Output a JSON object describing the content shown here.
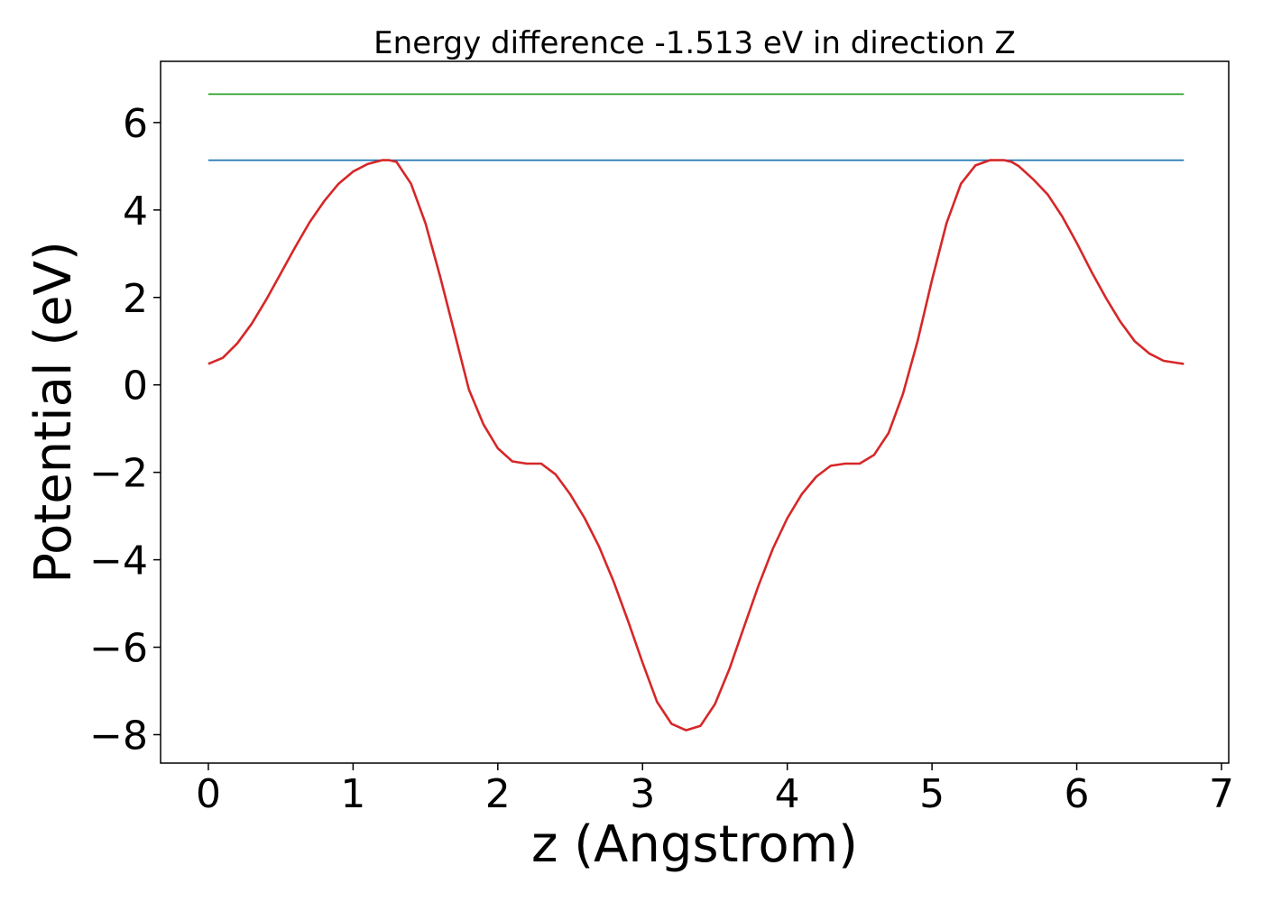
{
  "chart_data": {
    "type": "line",
    "title": "Energy difference -1.513 eV in direction Z",
    "xlabel": "z (Angstrom)",
    "ylabel": "Potential (eV)",
    "xlim": [
      -0.33,
      7.05
    ],
    "ylim": [
      -8.65,
      7.4
    ],
    "xticks": [
      0,
      1,
      2,
      3,
      4,
      5,
      6,
      7
    ],
    "xtick_labels": [
      "0",
      "1",
      "2",
      "3",
      "4",
      "5",
      "6",
      "7"
    ],
    "yticks": [
      -8,
      -6,
      -4,
      -2,
      0,
      2,
      4,
      6
    ],
    "ytick_labels": [
      "−8",
      "−6",
      "−4",
      "−2",
      "0",
      "2",
      "4",
      "6"
    ],
    "grid": false,
    "series": [
      {
        "color": "#2ca02c",
        "x": [
          0,
          6.74
        ],
        "y": [
          6.65,
          6.65
        ]
      },
      {
        "color": "#1f77b4",
        "x": [
          0,
          6.74
        ],
        "y": [
          5.14,
          5.14
        ]
      },
      {
        "color": "#d62728",
        "x": [
          0,
          0.1,
          0.2,
          0.3,
          0.4,
          0.5,
          0.6,
          0.7,
          0.8,
          0.9,
          1.0,
          1.1,
          1.2,
          1.25,
          1.3,
          1.4,
          1.5,
          1.6,
          1.7,
          1.8,
          1.9,
          2.0,
          2.1,
          2.2,
          2.3,
          2.4,
          2.5,
          2.6,
          2.7,
          2.8,
          2.9,
          3.0,
          3.1,
          3.2,
          3.3,
          3.4,
          3.5,
          3.6,
          3.7,
          3.8,
          3.9,
          4.0,
          4.1,
          4.2,
          4.3,
          4.4,
          4.5,
          4.6,
          4.7,
          4.8,
          4.9,
          5.0,
          5.1,
          5.2,
          5.3,
          5.4,
          5.5,
          5.55,
          5.6,
          5.7,
          5.8,
          5.9,
          6.0,
          6.1,
          6.2,
          6.3,
          6.4,
          6.5,
          6.6,
          6.7,
          6.74
        ],
        "y": [
          0.48,
          0.62,
          0.95,
          1.4,
          1.95,
          2.55,
          3.15,
          3.72,
          4.2,
          4.6,
          4.88,
          5.05,
          5.14,
          5.14,
          5.1,
          4.6,
          3.7,
          2.5,
          1.2,
          -0.1,
          -0.9,
          -1.45,
          -1.75,
          -1.8,
          -1.8,
          -2.05,
          -2.5,
          -3.05,
          -3.7,
          -4.5,
          -5.4,
          -6.35,
          -7.25,
          -7.75,
          -7.9,
          -7.8,
          -7.3,
          -6.5,
          -5.55,
          -4.6,
          -3.75,
          -3.05,
          -2.5,
          -2.1,
          -1.85,
          -1.8,
          -1.8,
          -1.6,
          -1.1,
          -0.2,
          1.0,
          2.4,
          3.7,
          4.6,
          5.02,
          5.14,
          5.14,
          5.1,
          5.0,
          4.7,
          4.35,
          3.85,
          3.25,
          2.6,
          2.0,
          1.45,
          1.0,
          0.72,
          0.55,
          0.5,
          0.48
        ]
      }
    ]
  }
}
